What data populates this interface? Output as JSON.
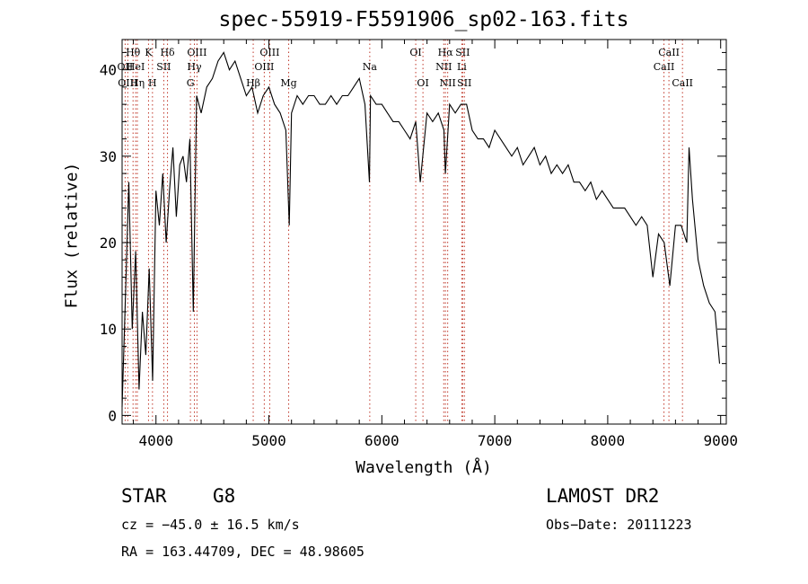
{
  "chart_data": {
    "type": "line",
    "title": "spec-55919-F5591906_sp02-163.fits",
    "xlabel": "Wavelength (Å)",
    "ylabel": "Flux (relative)",
    "xlim": [
      3700,
      9050
    ],
    "ylim": [
      -1,
      43.5
    ],
    "xticks": [
      4000,
      5000,
      6000,
      7000,
      8000,
      9000
    ],
    "yticks": [
      0,
      10,
      20,
      30,
      40
    ],
    "grid": false,
    "series": [
      {
        "color": "#000000",
        "x": [
          3700,
          3730,
          3760,
          3790,
          3820,
          3850,
          3880,
          3910,
          3940,
          3970,
          4000,
          4030,
          4060,
          4090,
          4120,
          4150,
          4180,
          4210,
          4240,
          4270,
          4300,
          4330,
          4360,
          4400,
          4450,
          4500,
          4550,
          4600,
          4650,
          4700,
          4750,
          4800,
          4850,
          4900,
          4950,
          5000,
          5050,
          5100,
          5150,
          5180,
          5200,
          5250,
          5300,
          5350,
          5400,
          5450,
          5500,
          5550,
          5600,
          5650,
          5700,
          5750,
          5800,
          5850,
          5890,
          5900,
          5950,
          6000,
          6050,
          6100,
          6150,
          6200,
          6250,
          6300,
          6340,
          6400,
          6450,
          6500,
          6550,
          6563,
          6600,
          6650,
          6700,
          6750,
          6800,
          6850,
          6900,
          6950,
          7000,
          7050,
          7100,
          7150,
          7200,
          7250,
          7300,
          7350,
          7400,
          7450,
          7500,
          7550,
          7600,
          7650,
          7700,
          7750,
          7800,
          7850,
          7900,
          7950,
          8000,
          8050,
          8100,
          8150,
          8200,
          8250,
          8300,
          8350,
          8400,
          8450,
          8500,
          8550,
          8600,
          8650,
          8700,
          8720,
          8750,
          8800,
          8850,
          8900,
          8950,
          8990
        ],
        "y": [
          1,
          14,
          27,
          10,
          19,
          3,
          12,
          7,
          17,
          4,
          26,
          22,
          28,
          20,
          26,
          31,
          23,
          29,
          30,
          27,
          32,
          12,
          37,
          35,
          38,
          39,
          41,
          42,
          40,
          41,
          39,
          37,
          38,
          35,
          37,
          38,
          36,
          35,
          33,
          22,
          35,
          37,
          36,
          37,
          37,
          36,
          36,
          37,
          36,
          37,
          37,
          38,
          39,
          36,
          27,
          37,
          36,
          36,
          35,
          34,
          34,
          33,
          32,
          34,
          27,
          35,
          34,
          35,
          33,
          28,
          36,
          35,
          36,
          36,
          33,
          32,
          32,
          31,
          33,
          32,
          31,
          30,
          31,
          29,
          30,
          31,
          29,
          30,
          28,
          29,
          28,
          29,
          27,
          27,
          26,
          27,
          25,
          26,
          25,
          24,
          24,
          24,
          23,
          22,
          23,
          22,
          16,
          21,
          20,
          15,
          22,
          22,
          20,
          31,
          25,
          18,
          15,
          13,
          12,
          6
        ]
      }
    ],
    "line_markers": [
      {
        "label": "Hθ",
        "x": 3797,
        "row": 1
      },
      {
        "label": "K",
        "x": 3934,
        "row": 1
      },
      {
        "label": "Hδ",
        "x": 4102,
        "row": 1
      },
      {
        "label": "OII",
        "x": 3727,
        "row": 2
      },
      {
        "label": "HeI",
        "x": 3820,
        "row": 2
      },
      {
        "label": "SII",
        "x": 4069,
        "row": 2
      },
      {
        "label": "OIII",
        "x": 3750,
        "row": 3
      },
      {
        "label": "Hη",
        "x": 3835,
        "row": 3
      },
      {
        "label": "H",
        "x": 3969,
        "row": 3
      },
      {
        "label": "OIII",
        "x": 4363,
        "row": 1
      },
      {
        "label": "Hγ",
        "x": 4340,
        "row": 2
      },
      {
        "label": "G",
        "x": 4305,
        "row": 3
      },
      {
        "label": "OIII",
        "x": 5007,
        "row": 1
      },
      {
        "label": "OIII",
        "x": 4959,
        "row": 2
      },
      {
        "label": "Hβ",
        "x": 4861,
        "row": 3
      },
      {
        "label": "Mg",
        "x": 5175,
        "row": 3
      },
      {
        "label": "Na",
        "x": 5893,
        "row": 2
      },
      {
        "label": "OI",
        "x": 6300,
        "row": 1
      },
      {
        "label": "OI",
        "x": 6364,
        "row": 3
      },
      {
        "label": "Hα",
        "x": 6563,
        "row": 1
      },
      {
        "label": "SII",
        "x": 6716,
        "row": 1
      },
      {
        "label": "NII",
        "x": 6548,
        "row": 2
      },
      {
        "label": "Li",
        "x": 6708,
        "row": 2
      },
      {
        "label": "NII",
        "x": 6583,
        "row": 3
      },
      {
        "label": "SII",
        "x": 6731,
        "row": 3
      },
      {
        "label": "CaII",
        "x": 8542,
        "row": 1
      },
      {
        "label": "CaII",
        "x": 8498,
        "row": 2
      },
      {
        "label": "CaII",
        "x": 8662,
        "row": 3
      }
    ]
  },
  "info": {
    "object_class": "STAR",
    "subclass": "G8",
    "survey": "LAMOST DR2",
    "cz": "cz = −45.0 ± 16.5 km/s",
    "obs_date": "Obs−Date: 20111223",
    "coords": "RA = 163.44709, DEC =  48.98605"
  }
}
